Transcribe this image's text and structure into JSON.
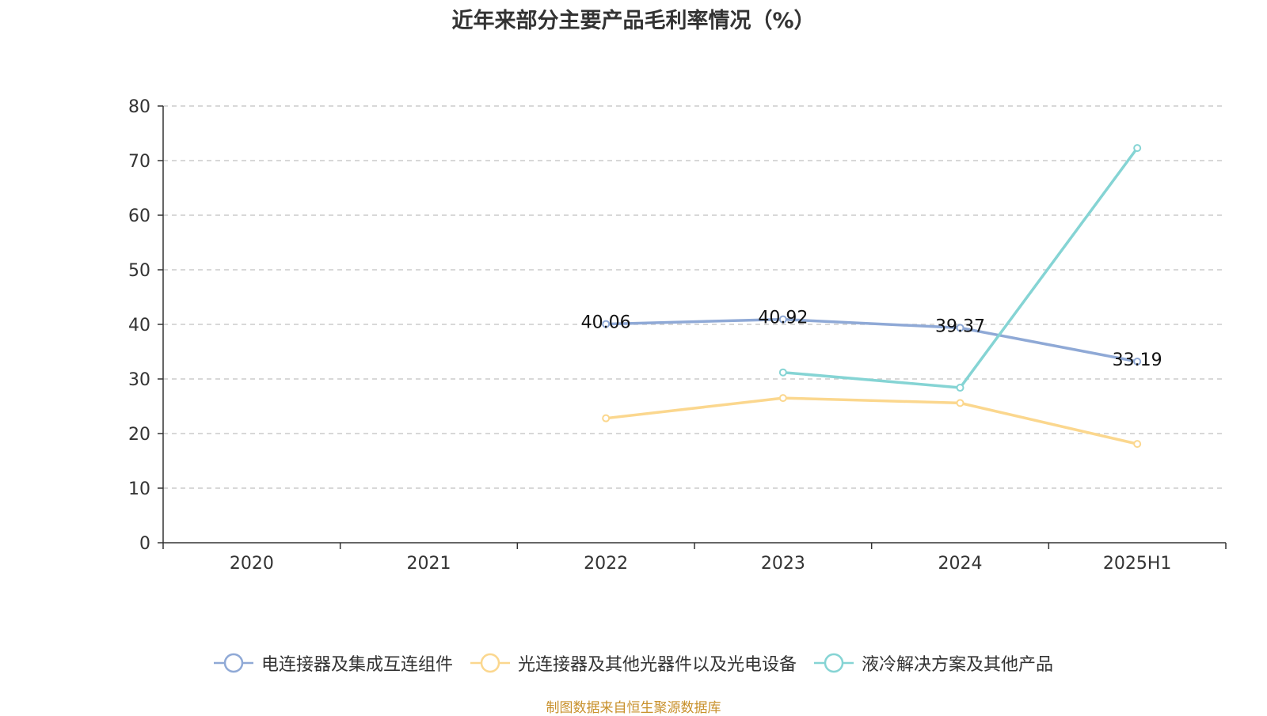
{
  "chart_data": {
    "type": "line",
    "title": "近年来部分主要产品毛利率情况（%）",
    "categories": [
      "2020",
      "2021",
      "2022",
      "2023",
      "2024",
      "2025H1"
    ],
    "ylim": [
      0,
      80
    ],
    "yticks": [
      0,
      10,
      20,
      30,
      40,
      50,
      60,
      70,
      80
    ],
    "grid": true,
    "legend_position": "bottom",
    "series": [
      {
        "name": "电连接器及集成互连组件",
        "color": "#8fa9d6",
        "values": [
          null,
          null,
          40.06,
          40.92,
          39.37,
          33.19
        ],
        "labels": [
          null,
          null,
          "40.06",
          "40.92",
          "39.37",
          "33.19"
        ]
      },
      {
        "name": "光连接器及其他光器件以及光电设备",
        "color": "#fbd78e",
        "values": [
          null,
          null,
          22.8,
          26.5,
          25.6,
          18.1
        ],
        "labels": [
          null,
          null,
          null,
          null,
          null,
          null
        ]
      },
      {
        "name": "液冷解决方案及其他产品",
        "color": "#85d4d4",
        "values": [
          null,
          null,
          null,
          31.2,
          28.4,
          72.3
        ],
        "labels": [
          null,
          null,
          null,
          null,
          null,
          null
        ]
      }
    ]
  },
  "footer": {
    "source": "制图数据来自恒生聚源数据库"
  }
}
